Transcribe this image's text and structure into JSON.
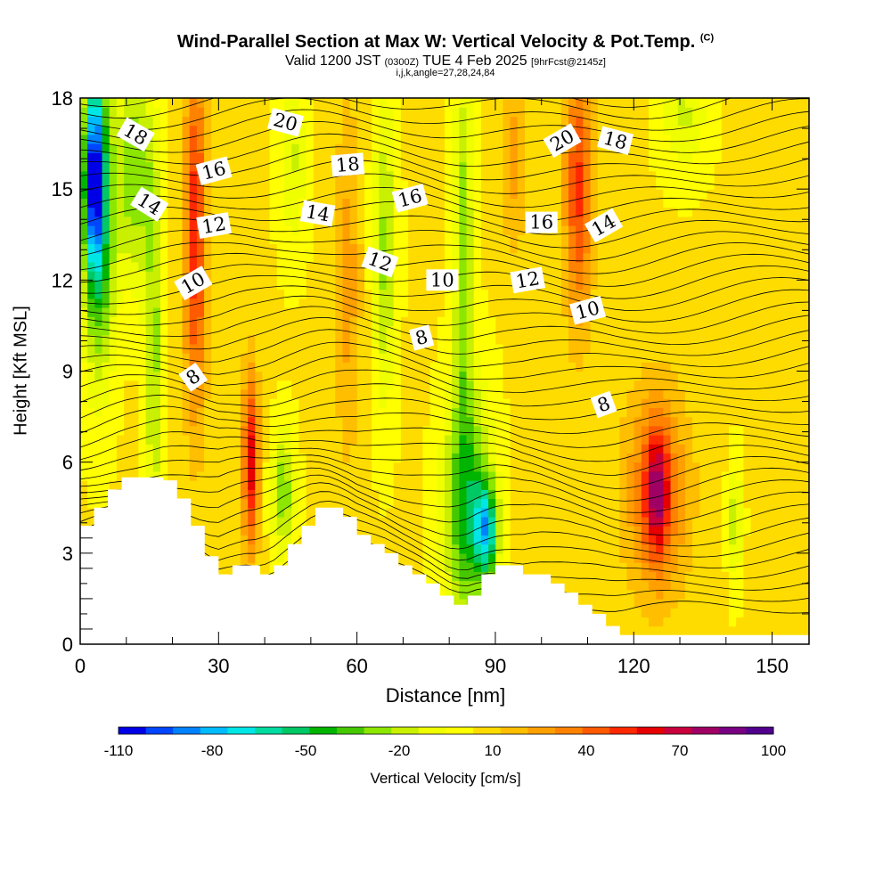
{
  "header": {
    "title": "Wind-Parallel Section at Max W: Vertical Velocity & Pot.Temp.",
    "copyright": "(C)",
    "valid_prefix": "Valid 1200 JST",
    "valid_utc": "(0300Z)",
    "valid_date": "TUE 4 Feb 2025",
    "forecast": "[9hrFcst@2145z]",
    "params": "i,j,k,angle=27,28,24,84"
  },
  "chart_data": {
    "type": "heatmap",
    "xlabel": "Distance [nm]",
    "ylabel": "Height [Kft MSL]",
    "xlim": [
      0,
      158
    ],
    "ylim": [
      0,
      18
    ],
    "x_ticks": [
      0,
      30,
      60,
      90,
      120,
      150
    ],
    "y_ticks": [
      0,
      3,
      6,
      9,
      12,
      15,
      18
    ],
    "grid": false,
    "colorbar": {
      "label": "Vertical Velocity [cm/s]",
      "placement": "bottom",
      "tick_labels": [
        "-110",
        "-80",
        "-50",
        "-20",
        "10",
        "40",
        "70",
        "100"
      ],
      "colors": [
        "#0000e6",
        "#0046ff",
        "#0082ff",
        "#00bcff",
        "#00e6e6",
        "#00dca0",
        "#00c864",
        "#00b400",
        "#46c800",
        "#8ce600",
        "#c8f000",
        "#f0ff00",
        "#ffff00",
        "#ffdc00",
        "#ffbe00",
        "#ffa000",
        "#ff8200",
        "#ff5a00",
        "#ff2800",
        "#e60000",
        "#c8003c",
        "#a00064",
        "#780082",
        "#50008c"
      ]
    },
    "terrain_height_kft": {
      "x": [
        0,
        3,
        6,
        9,
        12,
        15,
        18,
        21,
        24,
        27,
        30,
        33,
        36,
        39,
        42,
        45,
        48,
        51,
        54,
        57,
        60,
        63,
        66,
        69,
        72,
        75,
        78,
        81,
        84,
        87,
        90,
        93,
        96,
        99,
        102,
        105,
        108,
        111,
        114,
        117,
        120,
        123,
        126,
        129,
        132,
        135,
        138,
        141,
        144,
        147,
        150,
        153,
        156,
        158
      ],
      "y": [
        3.9,
        4.5,
        5.1,
        5.5,
        5.5,
        5.5,
        5.4,
        4.8,
        3.9,
        2.9,
        2.3,
        2.6,
        2.6,
        2.3,
        2.6,
        3.3,
        3.9,
        4.5,
        4.5,
        4.2,
        3.6,
        3.3,
        3.0,
        2.6,
        2.3,
        2.0,
        1.6,
        1.3,
        1.6,
        2.3,
        2.6,
        2.6,
        2.3,
        2.3,
        2.0,
        1.7,
        1.3,
        1.0,
        0.6,
        0.3,
        0.3,
        0.3,
        0.3,
        0.3,
        0.3,
        0.3,
        0.3,
        0.3,
        0.3,
        0.3,
        0.3,
        0.3,
        0.3,
        0.3
      ]
    },
    "vertical_velocity_cm_s": {
      "background": 5,
      "features": [
        {
          "x": 3,
          "z": 15.5,
          "value": -75,
          "width_nm": 2.0,
          "depth_kft": 3.0
        },
        {
          "x": 4,
          "z": 14.0,
          "value": -50,
          "width_nm": 3.5,
          "depth_kft": 5.0
        },
        {
          "x": 12,
          "z": 15.5,
          "value": -30,
          "width_nm": 4.0,
          "depth_kft": 3.5
        },
        {
          "x": 16,
          "z": 9.5,
          "value": -25,
          "width_nm": 2.0,
          "depth_kft": 6.0
        },
        {
          "x": 25,
          "z": 13.5,
          "value": 55,
          "width_nm": 2.5,
          "depth_kft": 6.0
        },
        {
          "x": 37,
          "z": 6.0,
          "value": 60,
          "width_nm": 1.8,
          "depth_kft": 3.0
        },
        {
          "x": 44,
          "z": 5.0,
          "value": -30,
          "width_nm": 2.5,
          "depth_kft": 2.0
        },
        {
          "x": 46,
          "z": 16.0,
          "value": -15,
          "width_nm": 3.0,
          "depth_kft": 3.0
        },
        {
          "x": 58,
          "z": 12.0,
          "value": 25,
          "width_nm": 3.0,
          "depth_kft": 6.0
        },
        {
          "x": 66,
          "z": 13.0,
          "value": -25,
          "width_nm": 2.5,
          "depth_kft": 5.0
        },
        {
          "x": 84,
          "z": 4.5,
          "value": -45,
          "width_nm": 5.0,
          "depth_kft": 4.0
        },
        {
          "x": 88,
          "z": 3.8,
          "value": -60,
          "width_nm": 2.5,
          "depth_kft": 1.5
        },
        {
          "x": 83,
          "z": 13.0,
          "value": -30,
          "width_nm": 2.0,
          "depth_kft": 6.0
        },
        {
          "x": 94,
          "z": 16.0,
          "value": 25,
          "width_nm": 3.0,
          "depth_kft": 3.0
        },
        {
          "x": 108,
          "z": 15.0,
          "value": 50,
          "width_nm": 3.0,
          "depth_kft": 4.5
        },
        {
          "x": 125,
          "z": 5.0,
          "value": 40,
          "width_nm": 7.0,
          "depth_kft": 3.5
        },
        {
          "x": 125,
          "z": 5.0,
          "value": 50,
          "width_nm": 2.5,
          "depth_kft": 2.0
        },
        {
          "x": 142,
          "z": 4.0,
          "value": -20,
          "width_nm": 1.5,
          "depth_kft": 2.0
        },
        {
          "x": 131,
          "z": 17.5,
          "value": -15,
          "width_nm": 5.0,
          "depth_kft": 2.0
        }
      ]
    },
    "potential_temperature": {
      "contour_labels": [
        {
          "text": "18",
          "x": 12,
          "z": 16.8,
          "angle": 30
        },
        {
          "text": "14",
          "x": 15,
          "z": 14.5,
          "angle": 32
        },
        {
          "text": "10",
          "x": 24.5,
          "z": 11.9,
          "angle": -30
        },
        {
          "text": "8",
          "x": 24.5,
          "z": 8.8,
          "angle": -35
        },
        {
          "text": "16",
          "x": 29,
          "z": 15.6,
          "angle": -15
        },
        {
          "text": "12",
          "x": 29,
          "z": 13.8,
          "angle": -10
        },
        {
          "text": "20",
          "x": 44.5,
          "z": 17.2,
          "angle": 15
        },
        {
          "text": "14",
          "x": 51.5,
          "z": 14.2,
          "angle": 10
        },
        {
          "text": "18",
          "x": 58,
          "z": 15.8,
          "angle": -5
        },
        {
          "text": "12",
          "x": 65,
          "z": 12.6,
          "angle": 20
        },
        {
          "text": "16",
          "x": 71.5,
          "z": 14.7,
          "angle": -15
        },
        {
          "text": "8",
          "x": 74,
          "z": 10.1,
          "angle": -15
        },
        {
          "text": "10",
          "x": 78.5,
          "z": 12.0,
          "angle": 0
        },
        {
          "text": "12",
          "x": 97,
          "z": 12.0,
          "angle": -10
        },
        {
          "text": "16",
          "x": 100,
          "z": 13.9,
          "angle": 0
        },
        {
          "text": "20",
          "x": 104.5,
          "z": 16.6,
          "angle": -30
        },
        {
          "text": "10",
          "x": 110,
          "z": 11.0,
          "angle": -15
        },
        {
          "text": "14",
          "x": 113.5,
          "z": 13.8,
          "angle": -30
        },
        {
          "text": "18",
          "x": 116,
          "z": 16.6,
          "angle": 15
        },
        {
          "text": "8",
          "x": 113.5,
          "z": 7.9,
          "angle": -20
        }
      ]
    }
  }
}
